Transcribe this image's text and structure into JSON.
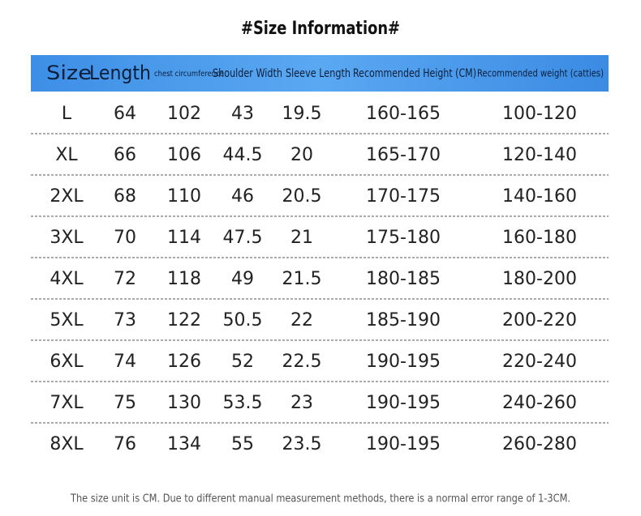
{
  "title": "#Size Information#",
  "table": {
    "header": [
      "Size",
      "Length",
      "chest circumference",
      "Shoulder Width",
      "Sleeve Length",
      "Recommended Height (CM)",
      "Recommended weight (catties)"
    ],
    "rows": [
      [
        "L",
        "64",
        "102",
        "43",
        "19.5",
        "160-165",
        "100-120"
      ],
      [
        "XL",
        "66",
        "106",
        "44.5",
        "20",
        "165-170",
        "120-140"
      ],
      [
        "2XL",
        "68",
        "110",
        "46",
        "20.5",
        "170-175",
        "140-160"
      ],
      [
        "3XL",
        "70",
        "114",
        "47.5",
        "21",
        "175-180",
        "160-180"
      ],
      [
        "4XL",
        "72",
        "118",
        "49",
        "21.5",
        "180-185",
        "180-200"
      ],
      [
        "5XL",
        "73",
        "122",
        "50.5",
        "22",
        "185-190",
        "200-220"
      ],
      [
        "6XL",
        "74",
        "126",
        "52",
        "22.5",
        "190-195",
        "220-240"
      ],
      [
        "7XL",
        "75",
        "130",
        "53.5",
        "23",
        "190-195",
        "240-260"
      ],
      [
        "8XL",
        "76",
        "134",
        "55",
        "23.5",
        "190-195",
        "260-280"
      ]
    ]
  },
  "footer": "The size unit is CM. Due to different manual measurement methods, there is a normal error range of 1-3CM."
}
